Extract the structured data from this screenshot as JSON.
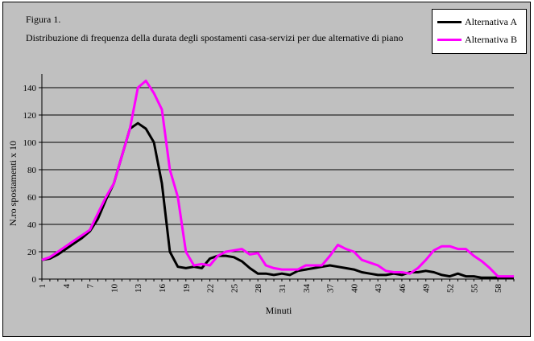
{
  "figure": {
    "title_line1": "Figura 1.",
    "title_line2": "Distribuzione di frequenza della durata degli spostamenti casa-servizi per due alternative di piano"
  },
  "colors": {
    "series_a": "#000000",
    "series_b": "#ff00ff",
    "plot_bg": "#c0c0c0",
    "grid": "#000000"
  },
  "chart_data": {
    "type": "line",
    "title": "Distribuzione di frequenza della durata degli spostamenti casa-servizi per due alternative di piano",
    "xlabel": "Minuti",
    "ylabel": "N.ro spostamenti x 10",
    "ylim": [
      0,
      150
    ],
    "yticks": [
      0,
      20,
      40,
      60,
      80,
      100,
      120,
      140
    ],
    "xticks": [
      1,
      4,
      7,
      10,
      13,
      16,
      19,
      22,
      25,
      28,
      31,
      34,
      37,
      40,
      43,
      46,
      49,
      52,
      55,
      58
    ],
    "grid": true,
    "legend_position": "top-right",
    "x": [
      1,
      2,
      3,
      4,
      5,
      6,
      7,
      8,
      9,
      10,
      11,
      12,
      13,
      14,
      15,
      16,
      17,
      18,
      19,
      20,
      21,
      22,
      23,
      24,
      25,
      26,
      27,
      28,
      29,
      30,
      31,
      32,
      33,
      34,
      35,
      36,
      37,
      38,
      39,
      40,
      41,
      42,
      43,
      44,
      45,
      46,
      47,
      48,
      49,
      50,
      51,
      52,
      53,
      54,
      55,
      56,
      57,
      58,
      59,
      60
    ],
    "series": [
      {
        "name": "Alternativa A",
        "values": [
          14,
          15,
          18,
          22,
          26,
          30,
          35,
          44,
          58,
          70,
          90,
          110,
          114,
          110,
          100,
          70,
          20,
          9,
          8,
          9,
          8,
          15,
          17,
          17,
          16,
          13,
          8,
          4,
          4,
          3,
          4,
          3,
          6,
          7,
          8,
          9,
          10,
          9,
          8,
          7,
          5,
          4,
          3,
          3,
          4,
          3,
          5,
          5,
          6,
          5,
          3,
          2,
          4,
          2,
          2,
          1,
          1,
          1,
          1,
          1
        ]
      },
      {
        "name": "Alternativa B",
        "values": [
          14,
          16,
          20,
          24,
          28,
          32,
          36,
          48,
          60,
          70,
          90,
          110,
          140,
          145,
          136,
          124,
          80,
          60,
          20,
          10,
          11,
          10,
          17,
          20,
          21,
          22,
          18,
          19,
          10,
          8,
          7,
          7,
          7,
          10,
          10,
          10,
          17,
          25,
          22,
          20,
          14,
          12,
          10,
          6,
          5,
          5,
          4,
          8,
          14,
          21,
          24,
          24,
          22,
          22,
          17,
          13,
          8,
          2,
          2,
          2
        ]
      }
    ]
  }
}
